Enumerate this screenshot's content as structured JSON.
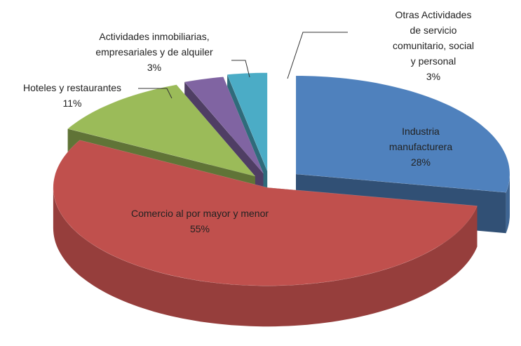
{
  "chart_data": {
    "type": "pie3d",
    "categories": [
      "Industria manufacturera",
      "Comercio al por mayor y menor",
      "Hoteles y restaurantes",
      "Actividades inmobiliarias,\nempresariales y de alquiler",
      "Otras Actividades de servicio\ncomunitario, social y personal"
    ],
    "values": [
      28,
      55,
      11,
      3,
      3
    ],
    "value_labels": [
      "28%",
      "55%",
      "11%",
      "3%",
      "3%"
    ],
    "colors": [
      "#4f81bd",
      "#c0504d",
      "#9bbb59",
      "#8064a2",
      "#4bacc6"
    ]
  }
}
